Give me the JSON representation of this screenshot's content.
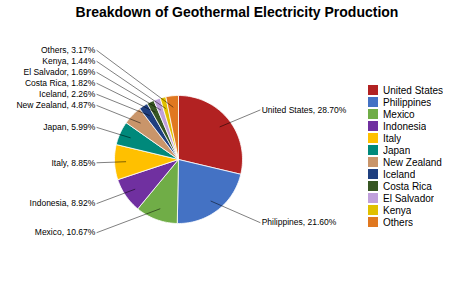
{
  "chart_data": {
    "type": "pie",
    "title": "Breakdown of Geothermal Electricity Production",
    "categories": [
      "United States",
      "Philippines",
      "Mexico",
      "Indonesia",
      "Italy",
      "Japan",
      "New Zealand",
      "Iceland",
      "Costa Rica",
      "El Salvador",
      "Kenya",
      "Others"
    ],
    "values": [
      28.7,
      21.6,
      10.67,
      8.92,
      8.85,
      5.99,
      4.87,
      2.26,
      1.82,
      1.69,
      1.44,
      3.17
    ],
    "value_labels": [
      "United States, 28.70%",
      "Philippines, 21.60%",
      "Mexico, 10.67%",
      "Indonesia, 8.92%",
      "Italy, 8.85%",
      "Japan, 5.99%",
      "New Zealand, 4.87%",
      "Iceland, 2.26%",
      "Costa Rica, 1.82%",
      "El Salvador, 1.69%",
      "Kenya, 1.44%",
      "Others, 3.17%"
    ],
    "colors": [
      "#B22222",
      "#4472C4",
      "#70AD47",
      "#7030A0",
      "#FFC000",
      "#00897B",
      "#C9956A",
      "#1F3F7F",
      "#375623",
      "#C0A0DC",
      "#E0C000",
      "#E07820"
    ],
    "legend": "right"
  }
}
